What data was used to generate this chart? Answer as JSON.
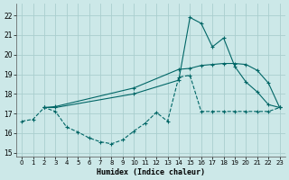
{
  "background_color": "#cce8e8",
  "grid_color": "#aacece",
  "line_color": "#006666",
  "xlabel": "Humidex (Indice chaleur)",
  "xlim": [
    -0.5,
    23.5
  ],
  "ylim": [
    14.8,
    22.6
  ],
  "yticks": [
    15,
    16,
    17,
    18,
    19,
    20,
    21,
    22
  ],
  "xticks": [
    0,
    1,
    2,
    3,
    4,
    5,
    6,
    7,
    8,
    9,
    10,
    11,
    12,
    13,
    14,
    15,
    16,
    17,
    18,
    19,
    20,
    21,
    22,
    23
  ],
  "line1_x": [
    0,
    1,
    2,
    3,
    4,
    5,
    6,
    7,
    8,
    9,
    10,
    11,
    12,
    13,
    14,
    15,
    16,
    17,
    18,
    19,
    20,
    21,
    22,
    23
  ],
  "line1_y": [
    16.6,
    16.7,
    17.3,
    17.1,
    16.3,
    16.05,
    15.75,
    15.55,
    15.45,
    15.65,
    16.1,
    16.5,
    17.05,
    16.6,
    18.85,
    18.95,
    17.1,
    17.1,
    17.1,
    17.1,
    17.1,
    17.1,
    17.1,
    17.3
  ],
  "line2_x": [
    2,
    3,
    10,
    14,
    15,
    16,
    17,
    18,
    19,
    20,
    21,
    22,
    23
  ],
  "line2_y": [
    17.3,
    17.3,
    18.0,
    18.7,
    21.9,
    21.6,
    20.4,
    20.85,
    19.4,
    18.6,
    18.1,
    17.45,
    17.3
  ],
  "line3_x": [
    2,
    3,
    10,
    14,
    15,
    16,
    17,
    18,
    19,
    20,
    21,
    22,
    23
  ],
  "line3_y": [
    17.3,
    17.35,
    18.3,
    19.25,
    19.3,
    19.45,
    19.5,
    19.55,
    19.55,
    19.5,
    19.2,
    18.55,
    17.3
  ]
}
